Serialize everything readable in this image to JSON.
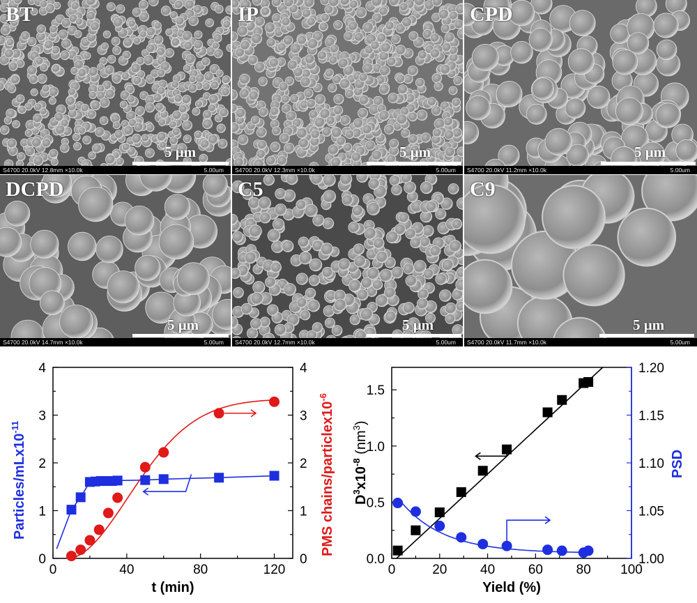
{
  "panels": [
    {
      "label": "BT",
      "scale_label": "5 μm",
      "info_left": "S4700 20.0kV 12.8mm ×10.0k",
      "info_right": "5.00um"
    },
    {
      "label": "IP",
      "scale_label": "5 μm",
      "info_left": "S4700 20.0kV 12.3mm ×10.0k",
      "info_right": "5.00um"
    },
    {
      "label": "CPD",
      "scale_label": "5 μm",
      "info_left": "S4700 20.0kV 11.2mm ×10.0k",
      "info_right": "5.00um"
    },
    {
      "label": "DCPD",
      "scale_label": "5 μm",
      "info_left": "S4700 20.0kV 14.7mm ×10.0k",
      "info_right": "5.00um"
    },
    {
      "label": "C5",
      "scale_label": "5 μm",
      "info_left": "S4700 20.0kV 12.7mm ×10.0k",
      "info_right": "5.00um"
    },
    {
      "label": "C9",
      "scale_label": "5 μm",
      "info_left": "S4700 20.0kV 11.7mm ×10.0k",
      "info_right": "5.00um"
    }
  ],
  "chart_data": [
    {
      "type": "scatter",
      "xlabel": "t (min)",
      "ylabel_left": "Particles/mLx10",
      "ylabel_left_exp": "-11",
      "ylabel_right": "PMS chains/particlex10",
      "ylabel_right_exp": "-6",
      "xlim": [
        0,
        130
      ],
      "ylim_left": [
        0,
        4
      ],
      "ylim_right": [
        0,
        4
      ],
      "x_ticks": [
        "0",
        "40",
        "80",
        "120"
      ],
      "y_ticks": [
        "0",
        "1",
        "2",
        "3",
        "4"
      ],
      "series": [
        {
          "axis": "left",
          "color": "#1e2fe0",
          "marker": "square",
          "x": [
            10,
            15,
            20,
            23,
            26,
            29,
            32,
            35,
            50,
            60,
            90,
            120
          ],
          "y": [
            1.02,
            1.28,
            1.6,
            1.61,
            1.62,
            1.62,
            1.62,
            1.63,
            1.64,
            1.66,
            1.69,
            1.73
          ]
        },
        {
          "axis": "right",
          "color": "#e01919",
          "marker": "circle",
          "x": [
            10,
            15,
            20,
            25,
            30,
            35,
            50,
            60,
            90,
            120
          ],
          "y": [
            0.05,
            0.18,
            0.38,
            0.6,
            0.95,
            1.27,
            1.91,
            2.22,
            3.04,
            3.28
          ]
        }
      ],
      "colors": {
        "left_axis": "#1e2fe0",
        "right_axis": "#e01919"
      }
    },
    {
      "type": "scatter",
      "xlabel": "Yield (%)",
      "ylabel_left": "D",
      "ylabel_left_sup": "3",
      "ylabel_left_mid": "x10",
      "ylabel_left_exp": "-8",
      "ylabel_left_unit": " (nm",
      "ylabel_left_unit_sup": "3",
      "ylabel_left_unit_end": ")",
      "ylabel_right": "PSD",
      "xlim": [
        0,
        100
      ],
      "ylim_left": [
        0,
        1.7
      ],
      "ylim_right": [
        1.0,
        1.2
      ],
      "x_ticks": [
        "0",
        "20",
        "40",
        "60",
        "80",
        "100"
      ],
      "y_ticks_left": [
        "0.0",
        "0.5",
        "1.0",
        "1.5"
      ],
      "y_ticks_right": [
        "1.00",
        "1.05",
        "1.10",
        "1.15",
        "1.20"
      ],
      "series": [
        {
          "axis": "left",
          "color": "#000000",
          "marker": "square",
          "x": [
            2.5,
            10,
            20,
            29,
            38,
            48,
            65,
            71,
            80,
            82
          ],
          "y": [
            0.07,
            0.25,
            0.41,
            0.59,
            0.78,
            0.97,
            1.3,
            1.41,
            1.56,
            1.57
          ]
        },
        {
          "axis": "right",
          "color": "#1e2fe0",
          "marker": "circle",
          "x": [
            2.5,
            10,
            20,
            29,
            38,
            48,
            65,
            71,
            80,
            82
          ],
          "y": [
            1.058,
            1.049,
            1.034,
            1.022,
            1.015,
            1.013,
            1.009,
            1.008,
            1.006,
            1.008
          ]
        }
      ],
      "colors": {
        "left_axis": "#000000",
        "right_axis": "#1e2fe0"
      }
    }
  ]
}
